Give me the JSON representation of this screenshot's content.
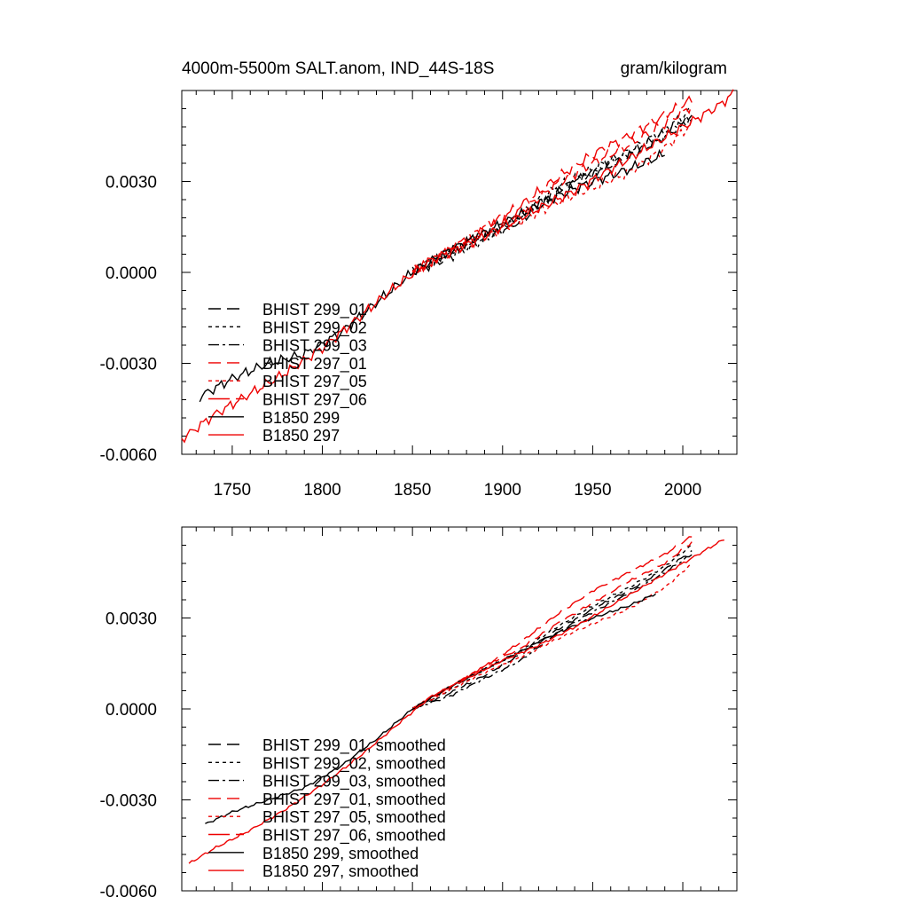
{
  "page": {
    "title_left": "4000m-5500m SALT.anom, IND_44S-18S",
    "title_right": "gram/kilogram"
  },
  "styles": {
    "BHIST 299_01": {
      "color": "#000000",
      "dash": "14,7"
    },
    "BHIST 299_02": {
      "color": "#000000",
      "dash": "4,4"
    },
    "BHIST 299_03": {
      "color": "#000000",
      "dash": "12,4,3,4"
    },
    "BHIST 297_01": {
      "color": "#ee0000",
      "dash": "14,7"
    },
    "BHIST 297_05": {
      "color": "#ee0000",
      "dash": "4,4"
    },
    "BHIST 297_06": {
      "color": "#ee0000",
      "dash": "24,7"
    },
    "B1850 299": {
      "color": "#000000",
      "dash": ""
    },
    "B1850 297": {
      "color": "#ee0000",
      "dash": ""
    }
  },
  "chart_data": [
    {
      "type": "line",
      "title": "4000m-5500m SALT.anom, IND_44S-18S",
      "units": "gram/kilogram",
      "xlabel": "",
      "ylabel": "",
      "xlim": [
        1722,
        2030
      ],
      "ylim": [
        -0.006,
        0.006
      ],
      "xticks": [
        1750,
        1800,
        1850,
        1900,
        1950,
        2000
      ],
      "xtick_labels": [
        "1750",
        "1800",
        "1850",
        "1900",
        "1950",
        "2000"
      ],
      "yticks": [
        -0.006,
        -0.003,
        0.0,
        0.003
      ],
      "ytick_labels": [
        "-0.0060",
        "-0.0030",
        "0.0000",
        "0.0030"
      ],
      "legend_position": "lower-left",
      "series": [
        {
          "name": "BHIST 299_01",
          "key": "BHIST 299_01",
          "x": [
            1850,
            1870,
            1890,
            1910,
            1930,
            1950,
            1970,
            1990,
            2005
          ],
          "y": [
            0.0,
            0.00068,
            0.00125,
            0.0018,
            0.0027,
            0.0033,
            0.0038,
            0.0045,
            0.0051
          ]
        },
        {
          "name": "BHIST 299_02",
          "key": "BHIST 299_02",
          "x": [
            1850,
            1870,
            1890,
            1910,
            1930,
            1950,
            1970,
            1990,
            2005
          ],
          "y": [
            0.0,
            0.0006,
            0.0012,
            0.0019,
            0.0028,
            0.0034,
            0.004,
            0.0047,
            0.0054
          ]
        },
        {
          "name": "BHIST 299_03",
          "key": "BHIST 299_03",
          "x": [
            1850,
            1870,
            1890,
            1910,
            1930,
            1950,
            1970,
            1990,
            2005
          ],
          "y": [
            0.0,
            0.0005,
            0.0011,
            0.0017,
            0.0026,
            0.0033,
            0.0039,
            0.0046,
            0.0051
          ]
        },
        {
          "name": "BHIST 297_01",
          "key": "BHIST 297_01",
          "x": [
            1850,
            1870,
            1890,
            1910,
            1930,
            1950,
            1970,
            1990,
            2005
          ],
          "y": [
            0.0,
            0.0007,
            0.0014,
            0.002,
            0.0029,
            0.0036,
            0.0042,
            0.0049,
            0.0055
          ]
        },
        {
          "name": "BHIST 297_05",
          "key": "BHIST 297_05",
          "x": [
            1850,
            1870,
            1890,
            1910,
            1930,
            1950,
            1970,
            1990,
            2005
          ],
          "y": [
            0.0,
            0.0006,
            0.0012,
            0.0017,
            0.0023,
            0.0028,
            0.0033,
            0.0041,
            0.0049
          ]
        },
        {
          "name": "BHIST 297_06",
          "key": "BHIST 297_06",
          "x": [
            1850,
            1870,
            1890,
            1910,
            1930,
            1950,
            1970,
            1990,
            2005
          ],
          "y": [
            0.0,
            0.0007,
            0.0015,
            0.0022,
            0.0031,
            0.0039,
            0.0045,
            0.0052,
            0.0057
          ]
        },
        {
          "name": "B1850 299",
          "key": "B1850 299",
          "x": [
            1732,
            1750,
            1770,
            1790,
            1810,
            1830,
            1850,
            1870,
            1890,
            1910,
            1930,
            1950,
            1970,
            1990
          ],
          "y": [
            -0.0041,
            -0.0035,
            -0.003,
            -0.0027,
            -0.002,
            -0.001,
            0.0,
            0.0007,
            0.0013,
            0.0019,
            0.0025,
            0.003,
            0.0034,
            0.0039
          ]
        },
        {
          "name": "B1850 297",
          "key": "B1850 297",
          "x": [
            1722,
            1740,
            1760,
            1780,
            1800,
            1820,
            1840,
            1860,
            1880,
            1900,
            1920,
            1940,
            1960,
            1980,
            2000,
            2020,
            2028
          ],
          "y": [
            -0.0055,
            -0.0047,
            -0.004,
            -0.0033,
            -0.0025,
            -0.0015,
            -0.0005,
            0.0004,
            0.0009,
            0.0015,
            0.0021,
            0.0027,
            0.0034,
            0.0041,
            0.0048,
            0.0055,
            0.0059
          ]
        }
      ]
    },
    {
      "type": "line",
      "title": "",
      "xlabel": "",
      "ylabel": "",
      "xlim": [
        1722,
        2030
      ],
      "ylim": [
        -0.006,
        0.006
      ],
      "xticks": [
        1750,
        1800,
        1850,
        1900,
        1950,
        2000
      ],
      "xtick_labels": [],
      "yticks": [
        -0.006,
        -0.003,
        0.0,
        0.003
      ],
      "ytick_labels": [
        "-0.0060",
        "-0.0030",
        "0.0000",
        "0.0030"
      ],
      "legend_position": "lower-left",
      "series": [
        {
          "name": "BHIST 299_01, smoothed",
          "key": "BHIST 299_01",
          "x": [
            1850,
            1870,
            1890,
            1910,
            1930,
            1950,
            1970,
            1990,
            2005
          ],
          "y": [
            0.0,
            0.0005,
            0.0011,
            0.0018,
            0.0026,
            0.0033,
            0.0039,
            0.0046,
            0.0052
          ]
        },
        {
          "name": "BHIST 299_02, smoothed",
          "key": "BHIST 299_02",
          "x": [
            1850,
            1870,
            1890,
            1910,
            1930,
            1950,
            1970,
            1990,
            2005
          ],
          "y": [
            0.0,
            0.0006,
            0.0013,
            0.0019,
            0.0027,
            0.0034,
            0.004,
            0.0047,
            0.0054
          ]
        },
        {
          "name": "BHIST 299_03, smoothed",
          "key": "BHIST 299_03",
          "x": [
            1850,
            1870,
            1890,
            1910,
            1930,
            1950,
            1970,
            1990,
            2005
          ],
          "y": [
            0.0,
            0.0004,
            0.001,
            0.0016,
            0.0025,
            0.0032,
            0.0038,
            0.0045,
            0.0051
          ]
        },
        {
          "name": "BHIST 297_01, smoothed",
          "key": "BHIST 297_01",
          "x": [
            1850,
            1870,
            1890,
            1910,
            1930,
            1950,
            1970,
            1990,
            2005
          ],
          "y": [
            0.0,
            0.0007,
            0.0014,
            0.002,
            0.0028,
            0.0035,
            0.0042,
            0.0048,
            0.0055
          ]
        },
        {
          "name": "BHIST 297_05, smoothed",
          "key": "BHIST 297_05",
          "x": [
            1850,
            1870,
            1890,
            1910,
            1930,
            1950,
            1970,
            1990,
            2005
          ],
          "y": [
            0.0,
            0.0006,
            0.0012,
            0.0017,
            0.0023,
            0.0028,
            0.0033,
            0.004,
            0.0048
          ]
        },
        {
          "name": "BHIST 297_06, smoothed",
          "key": "BHIST 297_06",
          "x": [
            1850,
            1870,
            1890,
            1910,
            1930,
            1950,
            1970,
            1990,
            2005
          ],
          "y": [
            0.0,
            0.0007,
            0.0014,
            0.0022,
            0.0031,
            0.0039,
            0.0045,
            0.0051,
            0.0057
          ]
        },
        {
          "name": "B1850 299, smoothed",
          "key": "B1850 299",
          "x": [
            1735,
            1750,
            1770,
            1790,
            1810,
            1830,
            1850,
            1870,
            1890,
            1910,
            1930,
            1950,
            1970,
            1985
          ],
          "y": [
            -0.0038,
            -0.0034,
            -0.003,
            -0.0026,
            -0.0019,
            -0.001,
            0.0,
            0.0007,
            0.0013,
            0.0019,
            0.0025,
            0.003,
            0.0034,
            0.0038
          ]
        },
        {
          "name": "B1850 297, smoothed",
          "key": "B1850 297",
          "x": [
            1726,
            1740,
            1760,
            1780,
            1800,
            1820,
            1840,
            1860,
            1880,
            1900,
            1920,
            1940,
            1960,
            1980,
            2000,
            2023
          ],
          "y": [
            -0.0051,
            -0.0046,
            -0.004,
            -0.0033,
            -0.0025,
            -0.0016,
            -0.0006,
            0.0004,
            0.001,
            0.0016,
            0.0021,
            0.0027,
            0.0034,
            0.0041,
            0.0048,
            0.0056
          ]
        }
      ]
    }
  ]
}
